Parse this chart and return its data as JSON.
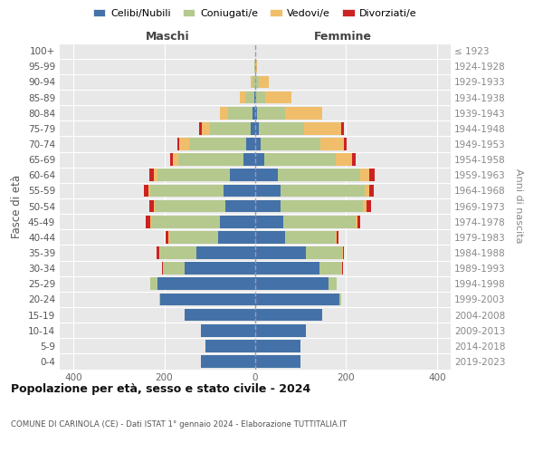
{
  "age_groups": [
    "0-4",
    "5-9",
    "10-14",
    "15-19",
    "20-24",
    "25-29",
    "30-34",
    "35-39",
    "40-44",
    "45-49",
    "50-54",
    "55-59",
    "60-64",
    "65-69",
    "70-74",
    "75-79",
    "80-84",
    "85-89",
    "90-94",
    "95-99",
    "100+"
  ],
  "birth_years": [
    "2019-2023",
    "2014-2018",
    "2009-2013",
    "2004-2008",
    "1999-2003",
    "1994-1998",
    "1989-1993",
    "1984-1988",
    "1979-1983",
    "1974-1978",
    "1969-1973",
    "1964-1968",
    "1959-1963",
    "1954-1958",
    "1949-1953",
    "1944-1948",
    "1939-1943",
    "1934-1938",
    "1929-1933",
    "1924-1928",
    "≤ 1923"
  ],
  "male": {
    "celibi": [
      120,
      110,
      120,
      155,
      210,
      215,
      155,
      130,
      82,
      78,
      65,
      70,
      55,
      25,
      20,
      10,
      5,
      2,
      0,
      0,
      0
    ],
    "coniugati": [
      0,
      0,
      0,
      0,
      2,
      15,
      48,
      80,
      108,
      150,
      155,
      160,
      160,
      145,
      125,
      90,
      55,
      20,
      5,
      2,
      0
    ],
    "vedovi": [
      0,
      0,
      0,
      0,
      0,
      0,
      0,
      2,
      2,
      2,
      2,
      5,
      8,
      12,
      22,
      18,
      18,
      12,
      5,
      0,
      0
    ],
    "divorziati": [
      0,
      0,
      0,
      0,
      0,
      0,
      2,
      5,
      5,
      10,
      10,
      10,
      10,
      5,
      5,
      5,
      0,
      0,
      0,
      0,
      0
    ]
  },
  "female": {
    "nubili": [
      100,
      100,
      112,
      148,
      185,
      162,
      142,
      112,
      65,
      62,
      55,
      55,
      50,
      20,
      12,
      8,
      4,
      2,
      0,
      0,
      0
    ],
    "coniugate": [
      0,
      0,
      0,
      0,
      5,
      18,
      50,
      80,
      112,
      158,
      182,
      185,
      180,
      158,
      132,
      100,
      62,
      20,
      8,
      2,
      0
    ],
    "vedove": [
      0,
      0,
      0,
      0,
      0,
      0,
      0,
      2,
      2,
      5,
      8,
      10,
      20,
      35,
      52,
      82,
      82,
      58,
      22,
      2,
      0
    ],
    "divorziate": [
      0,
      0,
      0,
      0,
      0,
      0,
      2,
      2,
      5,
      5,
      10,
      10,
      12,
      8,
      5,
      5,
      0,
      0,
      0,
      0,
      0
    ]
  },
  "colors": {
    "celibi": "#4472a8",
    "coniugati": "#b5c98e",
    "vedovi": "#f0be6a",
    "divorziati": "#cc2222"
  },
  "xlim": 430,
  "title": "Popolazione per età, sesso e stato civile - 2024",
  "subtitle": "COMUNE DI CARINOLA (CE) - Dati ISTAT 1° gennaio 2024 - Elaborazione TUTTITALIA.IT",
  "ylabel_left": "Fasce di età",
  "ylabel_right": "Anni di nascita",
  "xlabel_left": "Maschi",
  "xlabel_right": "Femmine",
  "legend_labels": [
    "Celibi/Nubili",
    "Coniugati/e",
    "Vedovi/e",
    "Divorziati/e"
  ],
  "background_color": "#ffffff",
  "plot_bg": "#e8e8e8"
}
